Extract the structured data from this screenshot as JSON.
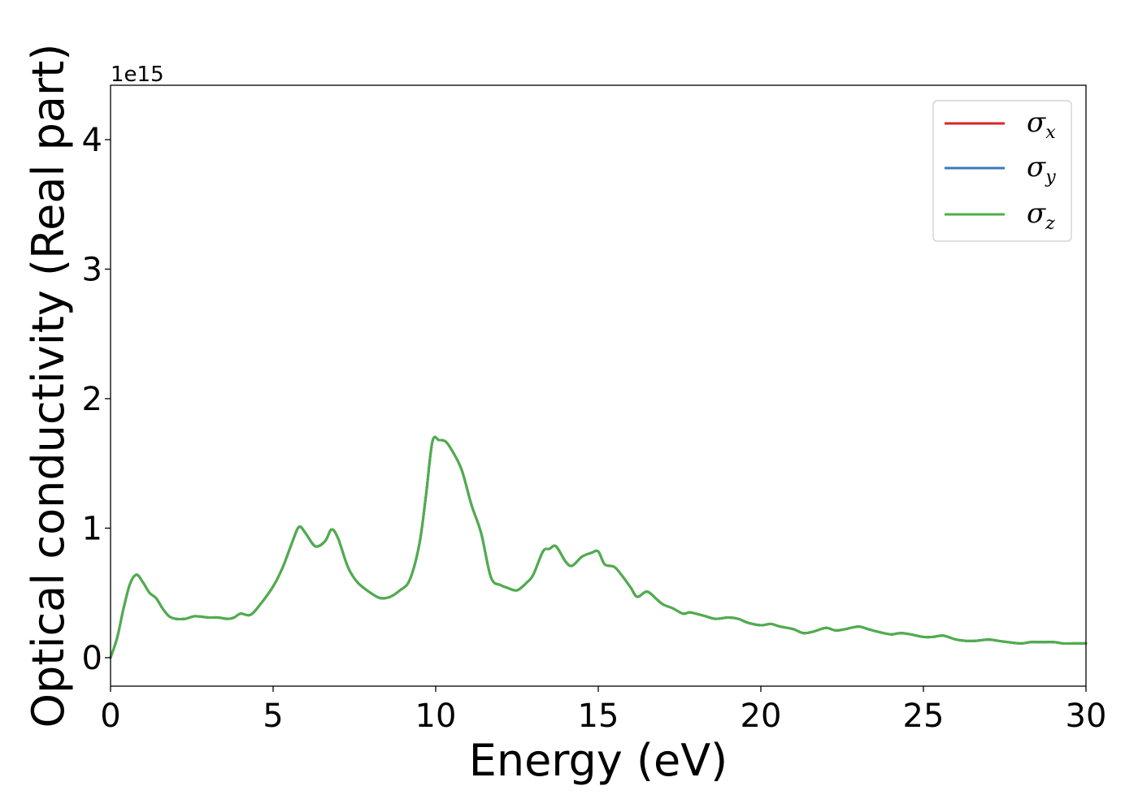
{
  "chart_data": {
    "type": "line",
    "xlabel": "Energy (eV)",
    "ylabel": "Optical conductivity (Real part)",
    "y_offset_label": "1e15",
    "xlim": [
      0,
      30
    ],
    "ylim": [
      -0.22,
      4.42
    ],
    "x_ticks": [
      0,
      5,
      10,
      15,
      20,
      25,
      30
    ],
    "y_ticks": [
      0,
      1,
      2,
      3,
      4
    ],
    "x_tick_labels": [
      "0",
      "5",
      "10",
      "15",
      "20",
      "25",
      "30"
    ],
    "y_tick_labels": [
      "0",
      "1",
      "2",
      "3",
      "4"
    ],
    "grid": false,
    "legend_position": "top-right",
    "colors": {
      "sigma_x": "#d62728",
      "sigma_y": "#3a7ab8",
      "sigma_z": "#4daf4a"
    },
    "legend": [
      {
        "base": "σ",
        "sub": "x",
        "color": "#d62728"
      },
      {
        "base": "σ",
        "sub": "y",
        "color": "#3a7ab8"
      },
      {
        "base": "σ",
        "sub": "z",
        "color": "#4daf4a"
      }
    ],
    "x": [
      0,
      0.2,
      0.4,
      0.6,
      0.8,
      1.0,
      1.2,
      1.4,
      1.6,
      1.8,
      2.0,
      2.3,
      2.6,
      3.0,
      3.3,
      3.6,
      3.8,
      4.0,
      4.3,
      4.6,
      5.0,
      5.3,
      5.6,
      5.8,
      6.0,
      6.3,
      6.6,
      6.8,
      7.0,
      7.3,
      7.6,
      8.0,
      8.3,
      8.6,
      8.9,
      9.2,
      9.5,
      9.7,
      9.9,
      10.1,
      10.3,
      10.5,
      10.8,
      11.1,
      11.4,
      11.7,
      12.0,
      12.2,
      12.5,
      12.8,
      13.0,
      13.3,
      13.5,
      13.7,
      14.0,
      14.2,
      14.5,
      14.8,
      15.0,
      15.2,
      15.5,
      15.8,
      16.0,
      16.2,
      16.5,
      16.8,
      17.0,
      17.3,
      17.6,
      17.8,
      18.0,
      18.3,
      18.6,
      19.0,
      19.3,
      19.6,
      20.0,
      20.3,
      20.6,
      21.0,
      21.3,
      21.6,
      22.0,
      22.3,
      22.6,
      23.0,
      23.3,
      23.6,
      24.0,
      24.3,
      24.6,
      25.0,
      25.3,
      25.6,
      26.0,
      26.3,
      26.6,
      27.0,
      27.3,
      27.6,
      28.0,
      28.3,
      28.6,
      29.0,
      29.3,
      29.6,
      30.0
    ],
    "series": [
      {
        "name": "σx",
        "color": "#d62728",
        "values": [
          0.0,
          0.15,
          0.38,
          0.57,
          0.64,
          0.58,
          0.5,
          0.46,
          0.38,
          0.32,
          0.3,
          0.3,
          0.32,
          0.31,
          0.31,
          0.3,
          0.31,
          0.34,
          0.33,
          0.41,
          0.55,
          0.7,
          0.9,
          1.01,
          0.96,
          0.86,
          0.9,
          0.99,
          0.92,
          0.7,
          0.58,
          0.5,
          0.46,
          0.47,
          0.52,
          0.6,
          0.88,
          1.25,
          1.67,
          1.68,
          1.67,
          1.6,
          1.45,
          1.18,
          0.96,
          0.62,
          0.56,
          0.54,
          0.52,
          0.58,
          0.64,
          0.82,
          0.84,
          0.86,
          0.74,
          0.71,
          0.78,
          0.81,
          0.82,
          0.72,
          0.7,
          0.61,
          0.54,
          0.47,
          0.51,
          0.45,
          0.41,
          0.38,
          0.34,
          0.35,
          0.34,
          0.32,
          0.3,
          0.31,
          0.3,
          0.27,
          0.25,
          0.26,
          0.24,
          0.22,
          0.19,
          0.2,
          0.23,
          0.21,
          0.22,
          0.24,
          0.22,
          0.2,
          0.18,
          0.19,
          0.18,
          0.16,
          0.16,
          0.17,
          0.14,
          0.13,
          0.13,
          0.14,
          0.13,
          0.12,
          0.11,
          0.12,
          0.12,
          0.12,
          0.11,
          0.11,
          0.11
        ]
      },
      {
        "name": "σy",
        "color": "#3a7ab8",
        "values": [
          0.0,
          0.15,
          0.38,
          0.57,
          0.64,
          0.58,
          0.5,
          0.46,
          0.38,
          0.32,
          0.3,
          0.3,
          0.32,
          0.31,
          0.31,
          0.3,
          0.31,
          0.34,
          0.33,
          0.41,
          0.55,
          0.7,
          0.9,
          1.01,
          0.96,
          0.86,
          0.9,
          0.99,
          0.92,
          0.7,
          0.58,
          0.5,
          0.46,
          0.47,
          0.52,
          0.6,
          0.88,
          1.25,
          1.67,
          1.68,
          1.67,
          1.6,
          1.45,
          1.18,
          0.96,
          0.62,
          0.56,
          0.54,
          0.52,
          0.58,
          0.64,
          0.82,
          0.84,
          0.86,
          0.74,
          0.71,
          0.78,
          0.81,
          0.82,
          0.72,
          0.7,
          0.61,
          0.54,
          0.47,
          0.51,
          0.45,
          0.41,
          0.38,
          0.34,
          0.35,
          0.34,
          0.32,
          0.3,
          0.31,
          0.3,
          0.27,
          0.25,
          0.26,
          0.24,
          0.22,
          0.19,
          0.2,
          0.23,
          0.21,
          0.22,
          0.24,
          0.22,
          0.2,
          0.18,
          0.19,
          0.18,
          0.16,
          0.16,
          0.17,
          0.14,
          0.13,
          0.13,
          0.14,
          0.13,
          0.12,
          0.11,
          0.12,
          0.12,
          0.12,
          0.11,
          0.11,
          0.11
        ]
      },
      {
        "name": "σz",
        "color": "#4daf4a",
        "values": [
          0.0,
          0.15,
          0.38,
          0.57,
          0.64,
          0.58,
          0.5,
          0.46,
          0.38,
          0.32,
          0.3,
          0.3,
          0.32,
          0.31,
          0.31,
          0.3,
          0.31,
          0.34,
          0.33,
          0.41,
          0.55,
          0.7,
          0.9,
          1.01,
          0.96,
          0.86,
          0.9,
          0.99,
          0.92,
          0.7,
          0.58,
          0.5,
          0.46,
          0.47,
          0.52,
          0.6,
          0.88,
          1.25,
          1.67,
          1.68,
          1.67,
          1.6,
          1.45,
          1.18,
          0.96,
          0.62,
          0.56,
          0.54,
          0.52,
          0.58,
          0.64,
          0.82,
          0.84,
          0.86,
          0.74,
          0.71,
          0.78,
          0.81,
          0.82,
          0.72,
          0.7,
          0.61,
          0.54,
          0.47,
          0.51,
          0.45,
          0.41,
          0.38,
          0.34,
          0.35,
          0.34,
          0.32,
          0.3,
          0.31,
          0.3,
          0.27,
          0.25,
          0.26,
          0.24,
          0.22,
          0.19,
          0.2,
          0.23,
          0.21,
          0.22,
          0.24,
          0.22,
          0.2,
          0.18,
          0.19,
          0.18,
          0.16,
          0.16,
          0.17,
          0.14,
          0.13,
          0.13,
          0.14,
          0.13,
          0.12,
          0.11,
          0.12,
          0.12,
          0.12,
          0.11,
          0.11,
          0.11
        ]
      }
    ]
  }
}
